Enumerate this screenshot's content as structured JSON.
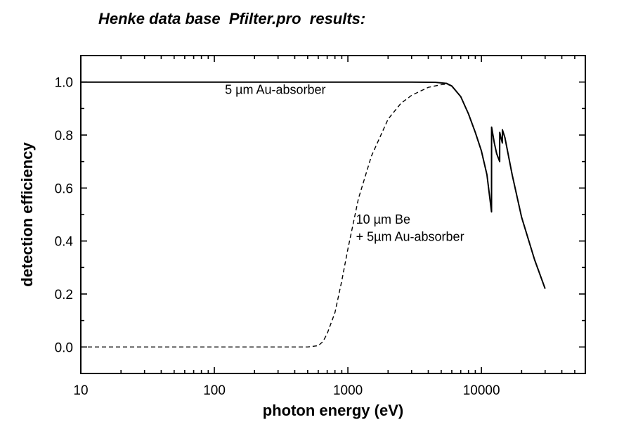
{
  "chart_data": {
    "type": "line",
    "title": "Henke data base  Pfilter.pro  results:",
    "xlabel": "photon energy (eV)",
    "ylabel": "detection efficiency",
    "xscale": "log",
    "xlim": [
      10,
      60000
    ],
    "ylim": [
      -0.1,
      1.1
    ],
    "xticks": [
      "10",
      "100",
      "1000",
      "10000"
    ],
    "yticks": [
      "0.0",
      "0.2",
      "0.4",
      "0.6",
      "0.8",
      "1.0"
    ],
    "grid": false,
    "legend": "none",
    "series": [
      {
        "line_style": "solid",
        "x": [
          10,
          100,
          1000,
          3000,
          4500,
          5500,
          6000,
          7000,
          8000,
          9000,
          10000,
          11000,
          11900,
          11920,
          12500,
          13000,
          13700,
          13720,
          14000,
          14350,
          14370,
          15000,
          17000,
          20000,
          25000,
          30000
        ],
        "y": [
          1.0,
          1.0,
          1.0,
          1.0,
          0.999,
          0.995,
          0.985,
          0.945,
          0.88,
          0.81,
          0.74,
          0.65,
          0.51,
          0.83,
          0.77,
          0.73,
          0.7,
          0.81,
          0.79,
          0.77,
          0.82,
          0.79,
          0.65,
          0.49,
          0.33,
          0.22
        ]
      },
      {
        "line_style": "dashed",
        "x": [
          10,
          100,
          500,
          600,
          650,
          700,
          800,
          900,
          1000,
          1200,
          1500,
          2000,
          2500,
          3000,
          4000,
          5000,
          5500,
          6000,
          7000
        ],
        "y": [
          0.0,
          0.0,
          0.0,
          0.005,
          0.02,
          0.05,
          0.13,
          0.25,
          0.37,
          0.56,
          0.72,
          0.86,
          0.92,
          0.95,
          0.98,
          0.99,
          0.992,
          0.985,
          0.945
        ]
      }
    ],
    "annotations": [
      {
        "text": "5 µm Au-absorber",
        "x": 120,
        "y": 0.955
      },
      {
        "text": "10 µm Be",
        "x": 1150,
        "y": 0.465
      },
      {
        "text": "+ 5µm Au-absorber",
        "x": 1150,
        "y": 0.4
      }
    ]
  }
}
